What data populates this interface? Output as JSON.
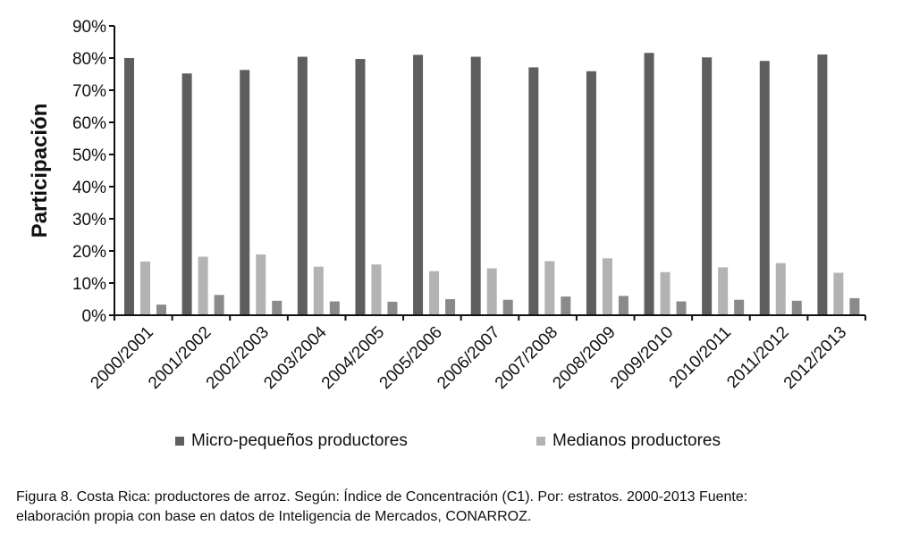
{
  "chart_data": {
    "type": "bar",
    "title": "",
    "xlabel": "",
    "ylabel": "Participación",
    "ylim": [
      0,
      90
    ],
    "yticks": [
      "0%",
      "10%",
      "20%",
      "30%",
      "40%",
      "50%",
      "60%",
      "70%",
      "80%",
      "90%"
    ],
    "ytick_values": [
      0,
      10,
      20,
      30,
      40,
      50,
      60,
      70,
      80,
      90
    ],
    "grid": false,
    "legend_position": "bottom",
    "categories": [
      "2000/2001",
      "2001/2002",
      "2002/2003",
      "2003/2004",
      "2004/2005",
      "2005/2006",
      "2006/2007",
      "2007/2008",
      "2008/2009",
      "2009/2010",
      "2010/2011",
      "2011/2012",
      "2012/2013"
    ],
    "series": [
      {
        "name": "Micro-pequeños productores",
        "color": "#5e5e5e",
        "values": [
          80.0,
          75.2,
          76.3,
          80.4,
          79.7,
          81.0,
          80.4,
          77.1,
          75.9,
          81.6,
          80.2,
          79.1,
          81.1
        ]
      },
      {
        "name": "Medianos productores",
        "color": "#b3b3b3",
        "values": [
          16.7,
          18.2,
          18.9,
          15.1,
          15.8,
          13.7,
          14.6,
          16.8,
          17.7,
          13.4,
          14.9,
          16.2,
          13.2
        ]
      },
      {
        "name": "",
        "color": "#8a8a8a",
        "values": [
          3.3,
          6.3,
          4.5,
          4.3,
          4.2,
          5.0,
          4.8,
          5.8,
          6.0,
          4.3,
          4.8,
          4.5,
          5.3
        ]
      }
    ]
  },
  "legend": {
    "items": [
      {
        "label": "Micro-pequeños productores",
        "color": "#5e5e5e"
      },
      {
        "label": "Medianos productores",
        "color": "#b3b3b3"
      }
    ]
  },
  "caption": {
    "line1": "Figura 8. Costa Rica: productores de arroz. Según: Índice de Concentración (C1). Por: estratos. 2000-2013 Fuente:",
    "line2": "elaboración propia con base en datos de Inteligencia de Mercados, CONARROZ."
  }
}
